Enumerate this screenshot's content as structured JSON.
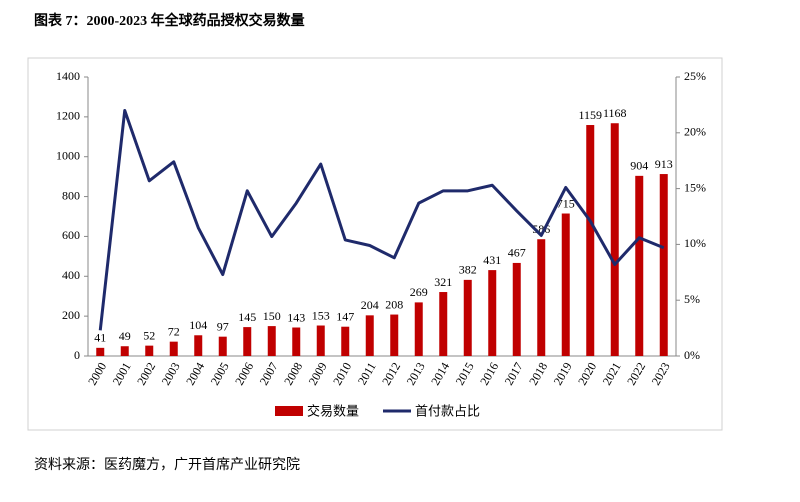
{
  "title": "图表 7：2000-2023 年全球药品授权交易数量",
  "source": "资料来源：医药魔方，广开首席产业研究院",
  "chart_data": {
    "type": "bar_line",
    "categories": [
      "2000",
      "2001",
      "2002",
      "2003",
      "2004",
      "2005",
      "2006",
      "2007",
      "2008",
      "2009",
      "2010",
      "2011",
      "2012",
      "2013",
      "2014",
      "2015",
      "2016",
      "2017",
      "2018",
      "2019",
      "2020",
      "2021",
      "2022",
      "2023"
    ],
    "series": [
      {
        "name": "交易数量",
        "type": "bar",
        "color": "#c00000",
        "values": [
          41,
          49,
          52,
          72,
          104,
          97,
          145,
          150,
          143,
          153,
          147,
          204,
          208,
          269,
          321,
          382,
          431,
          467,
          586,
          715,
          1159,
          1168,
          904,
          913
        ]
      },
      {
        "name": "首付款占比",
        "type": "line",
        "axis": "y2",
        "color": "#1f2a6b",
        "values": [
          2.3,
          22.0,
          15.7,
          17.4,
          11.5,
          7.3,
          14.8,
          10.7,
          13.7,
          17.2,
          10.4,
          9.9,
          8.8,
          13.7,
          14.8,
          14.8,
          15.3,
          13.0,
          10.8,
          15.1,
          12.1,
          8.2,
          10.6,
          9.7
        ]
      }
    ],
    "ylim": [
      0,
      1400
    ],
    "yticks": [
      0,
      200,
      400,
      600,
      800,
      1000,
      1200,
      1400
    ],
    "y2lim": [
      0,
      25
    ],
    "y2ticks": [
      {
        "value": 0,
        "label": "0%"
      },
      {
        "value": 5,
        "label": "5%"
      },
      {
        "value": 10,
        "label": "10%"
      },
      {
        "value": 15,
        "label": "15%"
      },
      {
        "value": 20,
        "label": "20%"
      },
      {
        "value": 25,
        "label": "25%"
      }
    ],
    "legend": "bottom"
  }
}
